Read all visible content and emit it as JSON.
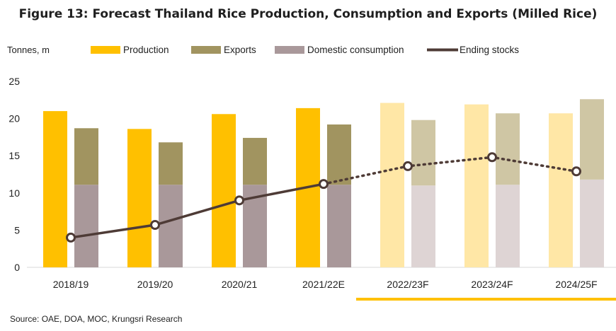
{
  "title": "Figure 13: Forecast Thailand  Rice Production, Consumption and Exports (Milled Rice)",
  "source": "Source: OAE, DOA, MOC, Krungsri Research",
  "chart_data": {
    "type": "bar",
    "ylabel": "Tonnes, m",
    "ylim": [
      0,
      25
    ],
    "yticks": [
      0,
      5,
      10,
      15,
      20,
      25
    ],
    "categories": [
      "2018/19",
      "2019/20",
      "2020/21",
      "2021/22E",
      "2022/23F",
      "2023/24F",
      "2024/25F"
    ],
    "forecast_from_index": 4,
    "legend_position": "top",
    "series": [
      {
        "name": "Production",
        "type": "bar",
        "values": [
          21.0,
          18.6,
          20.6,
          21.4,
          22.1,
          21.9,
          20.7
        ],
        "color": "#FFC000",
        "forecast_color": "#FFE7A6"
      },
      {
        "name": "Exports",
        "type": "stacked-bar-top",
        "values": [
          7.6,
          5.7,
          6.3,
          8.1,
          8.8,
          9.6,
          10.8
        ],
        "color": "#A19460",
        "forecast_color": "#CFC6A4"
      },
      {
        "name": "Domestic consumption",
        "type": "stacked-bar-base",
        "values": [
          11.1,
          11.1,
          11.1,
          11.1,
          11.0,
          11.1,
          11.8
        ],
        "color": "#A9989A",
        "forecast_color": "#DED4D4"
      },
      {
        "name": "Ending stocks",
        "type": "line",
        "values": [
          4.0,
          5.7,
          9.0,
          11.2,
          13.6,
          14.8,
          12.9
        ],
        "color": "#4E3B36"
      }
    ],
    "forecast_underline_color": "#FFC000"
  }
}
